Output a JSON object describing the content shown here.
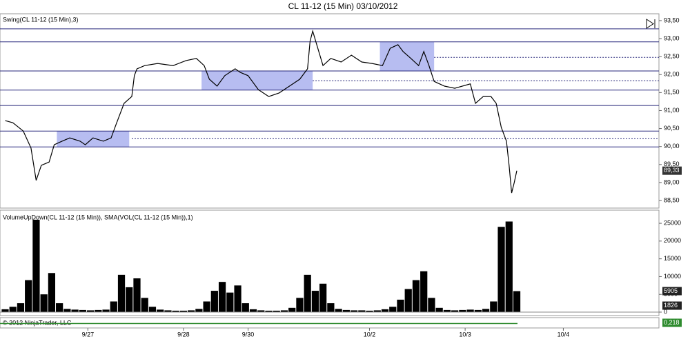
{
  "header": {
    "title": "CL 11-12 (15 Min)  03/10/2012"
  },
  "x_axis": {
    "xlim": [
      0,
      255
    ],
    "xticks": [
      {
        "value": 34,
        "label": "9/27"
      },
      {
        "value": 71,
        "label": "9/28"
      },
      {
        "value": 96,
        "label": "9/30"
      },
      {
        "value": 143,
        "label": "10/2"
      },
      {
        "value": 180,
        "label": "10/3"
      },
      {
        "value": 218,
        "label": "10/4"
      }
    ]
  },
  "chart_data": [
    {
      "type": "line",
      "title": "Swing(CL 11-12 (15 Min),3)",
      "color": "#000000",
      "x": [
        2,
        5,
        9,
        12,
        14,
        16,
        19,
        21,
        24,
        27,
        31,
        33,
        36,
        40,
        43,
        45,
        48,
        51,
        52,
        53,
        56,
        61,
        67,
        72,
        76,
        79,
        81,
        84,
        87,
        91,
        93,
        96,
        100,
        104,
        108,
        112,
        116,
        119,
        120,
        121,
        123,
        125,
        128,
        132,
        136,
        140,
        144,
        148,
        151,
        154,
        156,
        159,
        162,
        164,
        166,
        168,
        172,
        176,
        182,
        184,
        187,
        190,
        192,
        194,
        196,
        197,
        198,
        199,
        200
      ],
      "values": [
        90.72,
        90.66,
        90.43,
        89.96,
        89.06,
        89.48,
        89.57,
        90.05,
        90.15,
        90.24,
        90.15,
        90.05,
        90.24,
        90.15,
        90.24,
        90.63,
        91.2,
        91.39,
        91.97,
        92.16,
        92.25,
        92.31,
        92.25,
        92.39,
        92.45,
        92.25,
        91.87,
        91.68,
        91.97,
        92.16,
        92.06,
        91.97,
        91.58,
        91.39,
        91.49,
        91.68,
        91.87,
        92.16,
        92.93,
        93.21,
        92.73,
        92.25,
        92.45,
        92.35,
        92.54,
        92.35,
        92.31,
        92.25,
        92.73,
        92.83,
        92.64,
        92.45,
        92.25,
        92.64,
        92.25,
        91.81,
        91.68,
        91.62,
        91.74,
        91.2,
        91.39,
        91.39,
        91.2,
        90.53,
        90.15,
        89.48,
        88.71,
        89.0,
        89.33
      ],
      "ylim": [
        88.29,
        93.69
      ],
      "yticks": [
        {
          "value": 88.5,
          "label": "88,50"
        },
        {
          "value": 89,
          "label": "89,00"
        },
        {
          "value": 89.5,
          "label": "89,50"
        },
        {
          "value": 90,
          "label": "90,00"
        },
        {
          "value": 90.5,
          "label": "90,50"
        },
        {
          "value": 91,
          "label": "91,00"
        },
        {
          "value": 91.5,
          "label": "91,50"
        },
        {
          "value": 92,
          "label": "92,00"
        },
        {
          "value": 92.5,
          "label": "92,50"
        },
        {
          "value": 93,
          "label": "93,00"
        },
        {
          "value": 93.5,
          "label": "93,50"
        }
      ],
      "last_label": {
        "value": 89.33,
        "label": "89,33"
      },
      "levels": [
        93.27,
        92.91,
        92.1,
        91.57,
        91.14,
        90.43,
        89.99
      ],
      "level_color": "#26267a",
      "dotted_levels": [
        {
          "x": 168,
          "value": 92.48
        },
        {
          "x": 121,
          "value": 91.83
        },
        {
          "x": 51,
          "value": 90.22
        }
      ],
      "zones": [
        {
          "x": [
            22,
            50
          ],
          "y": [
            89.99,
            90.43
          ]
        },
        {
          "x": [
            78,
            121
          ],
          "y": [
            91.57,
            92.1
          ]
        },
        {
          "x": [
            147,
            168
          ],
          "y": [
            92.1,
            92.91
          ]
        }
      ],
      "zone_color": "#aab2ee"
    },
    {
      "type": "bar",
      "title": "VolumeUpDown(CL 11-12 (15 Min)), SMA(VOL(CL 11-12 (15 Min)),1)",
      "color": "#000000",
      "x": [
        2,
        5,
        8,
        11,
        14,
        17,
        20,
        23,
        26,
        29,
        32,
        35,
        38,
        41,
        44,
        47,
        50,
        53,
        56,
        59,
        62,
        65,
        68,
        71,
        74,
        77,
        80,
        83,
        86,
        89,
        92,
        95,
        98,
        101,
        104,
        107,
        110,
        113,
        116,
        119,
        122,
        125,
        128,
        131,
        134,
        137,
        140,
        143,
        146,
        149,
        152,
        155,
        158,
        161,
        164,
        167,
        170,
        173,
        176,
        179,
        182,
        185,
        188,
        191,
        194,
        197,
        200
      ],
      "values": [
        800,
        1500,
        2500,
        9000,
        26000,
        5000,
        11000,
        2500,
        900,
        700,
        600,
        500,
        600,
        700,
        3000,
        10500,
        7000,
        9500,
        4000,
        1500,
        700,
        500,
        400,
        400,
        500,
        900,
        3000,
        6000,
        8500,
        5500,
        7500,
        2500,
        800,
        500,
        400,
        400,
        500,
        1200,
        4000,
        10500,
        6000,
        8000,
        2500,
        900,
        600,
        500,
        500,
        400,
        500,
        800,
        1500,
        3500,
        6500,
        9000,
        11500,
        4000,
        1200,
        600,
        500,
        600,
        700,
        600,
        900,
        3000,
        24000,
        25500,
        5905
      ],
      "ylim": [
        -970,
        28700
      ],
      "yticks": [
        0,
        5000,
        10000,
        15000,
        20000,
        25000
      ],
      "sma_last": 1826
    },
    {
      "type": "line",
      "title": "© 2012 NinjaTrader, LLC",
      "color": "#2e8b2e",
      "last_label": {
        "value": 0.218,
        "label": "0,218"
      }
    }
  ]
}
